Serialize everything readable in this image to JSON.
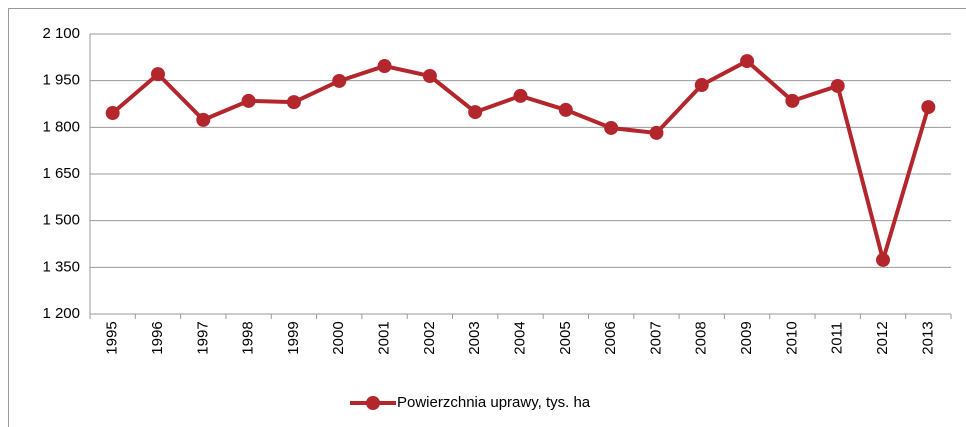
{
  "chart_data": {
    "type": "line",
    "categories": [
      "1995",
      "1996",
      "1997",
      "1998",
      "1999",
      "2000",
      "2001",
      "2002",
      "2003",
      "2004",
      "2005",
      "2006",
      "2007",
      "2008",
      "2009",
      "2010",
      "2011",
      "2012",
      "2013"
    ],
    "series": [
      {
        "name": "Powierzchnia uprawy, tys. ha",
        "color": "#b3262b",
        "values": [
          1846,
          1971,
          1824,
          1885,
          1881,
          1949,
          1997,
          1965,
          1849,
          1901,
          1856,
          1798,
          1782,
          1936,
          2013,
          1885,
          1933,
          1374,
          1865
        ]
      }
    ],
    "ylim": [
      1200,
      2100
    ],
    "yticks": [
      {
        "value": 1200,
        "label": "1 200"
      },
      {
        "value": 1350,
        "label": "1 350"
      },
      {
        "value": 1500,
        "label": "1 500"
      },
      {
        "value": 1650,
        "label": "1 650"
      },
      {
        "value": 1800,
        "label": "1 800"
      },
      {
        "value": 1950,
        "label": "1 950"
      },
      {
        "value": 2100,
        "label": "2 100"
      }
    ],
    "grid": true,
    "legend": "bottom"
  }
}
